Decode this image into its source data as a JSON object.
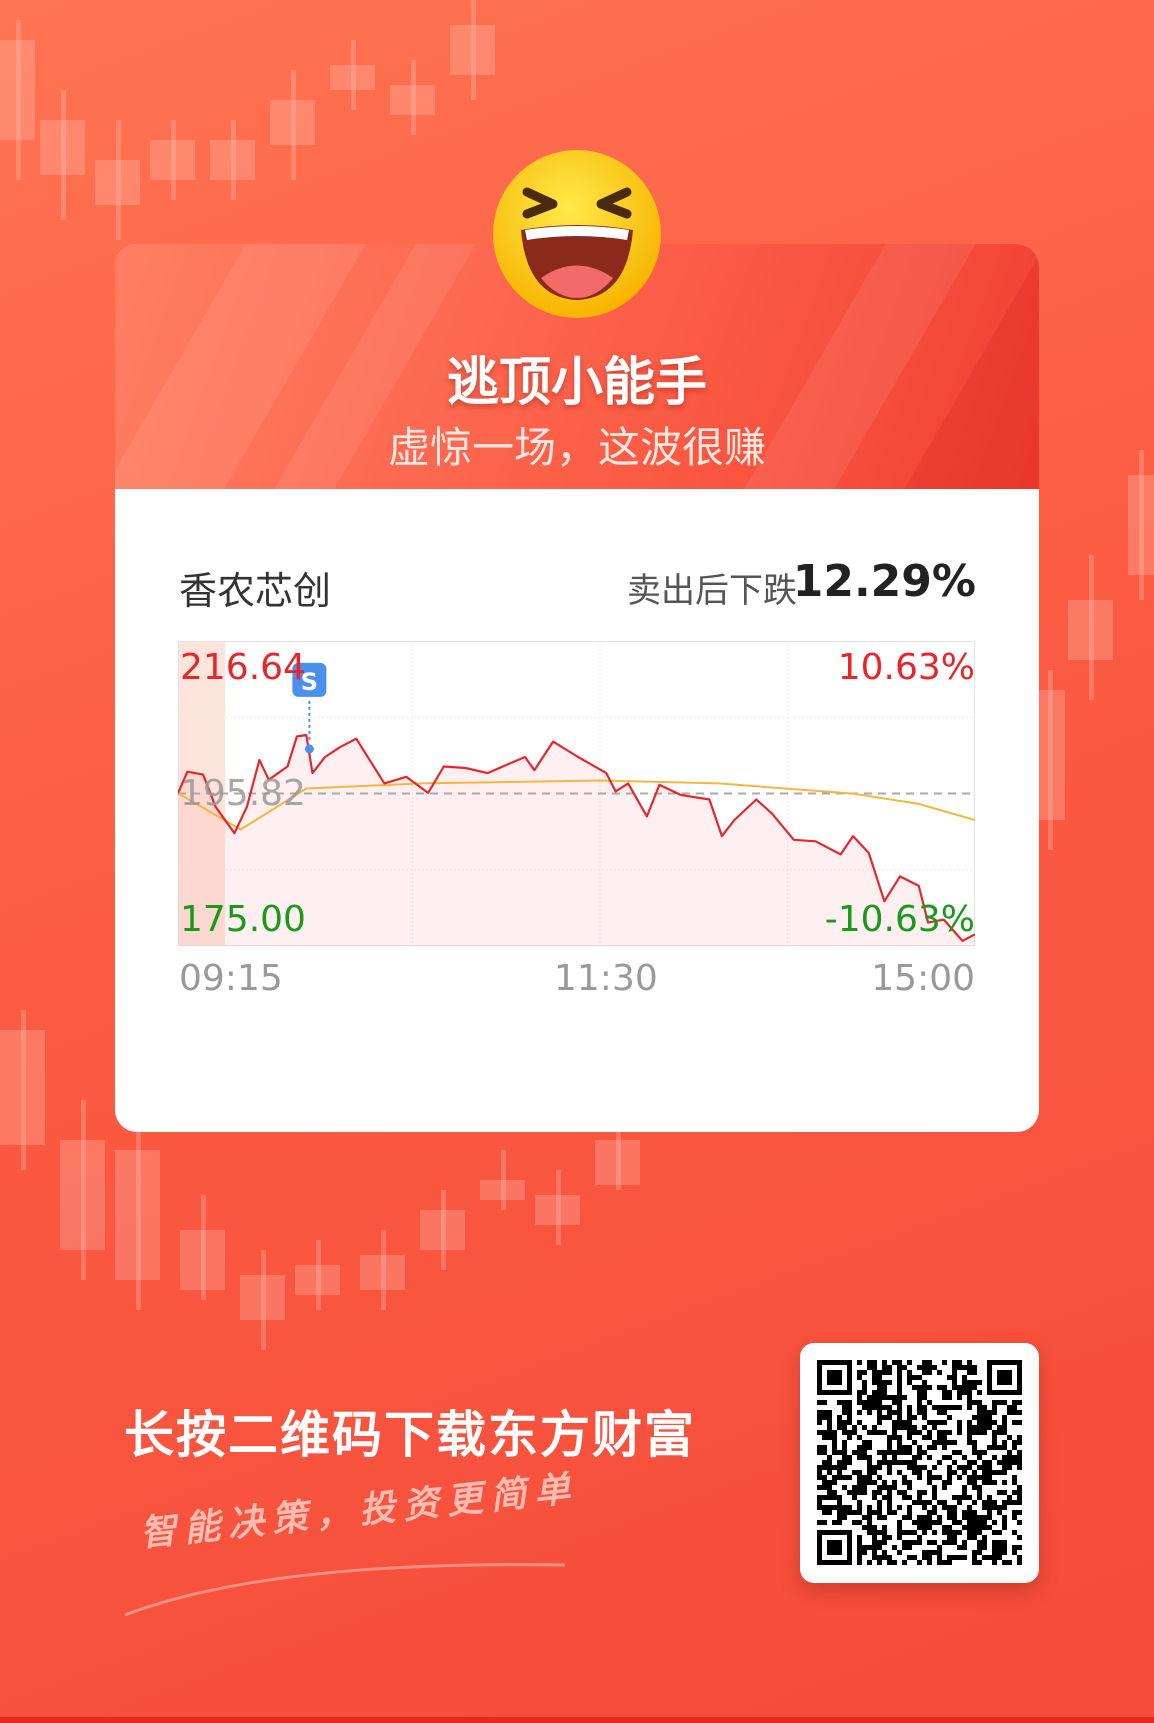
{
  "header": {
    "title": "逃顶小能手",
    "subtitle": "虚惊一场，这波很赚",
    "emoji_icon": "laughing-face-icon"
  },
  "stock": {
    "name": "香农芯创",
    "drop_label": "卖出后下跌",
    "drop_value": "12.29%"
  },
  "chart_data": {
    "type": "line",
    "y_axis_left": {
      "max_label": "216.64",
      "mid_label": "195.82",
      "min_label": "175.00"
    },
    "y_axis_right": {
      "max_label": "10.63%",
      "min_label": "-10.63%"
    },
    "ylim": [
      175.0,
      216.64
    ],
    "preclose": 195.82,
    "x_tick_labels": [
      "09:15",
      "11:30",
      "15:00"
    ],
    "grid": true,
    "colors": {
      "price": "#e8262a",
      "average": "#f5b53f",
      "up": "#e8262a",
      "down": "#1a9a1a",
      "sell_marker": "#4a90f0"
    },
    "sell_marker": {
      "label": "S",
      "time": "09:57",
      "price": 203.0
    },
    "series": [
      {
        "key": "price",
        "points": [
          [
            "09:15",
            195.86
          ],
          [
            "09:18",
            198.8
          ],
          [
            "09:23",
            198.4
          ],
          [
            "09:27",
            194.0
          ],
          [
            "09:33",
            190.4
          ],
          [
            "09:37",
            194.0
          ],
          [
            "09:41",
            200.4
          ],
          [
            "09:44",
            197.7
          ],
          [
            "09:50",
            199.5
          ],
          [
            "09:53",
            203.6
          ],
          [
            "09:56",
            203.8
          ],
          [
            "09:58",
            198.6
          ],
          [
            "10:02",
            200.8
          ],
          [
            "10:07",
            202.2
          ],
          [
            "10:12",
            203.3
          ],
          [
            "10:17",
            199.9
          ],
          [
            "10:21",
            197.2
          ],
          [
            "10:28",
            198.1
          ],
          [
            "10:35",
            195.9
          ],
          [
            "10:40",
            199.5
          ],
          [
            "10:47",
            199.3
          ],
          [
            "10:54",
            198.6
          ],
          [
            "11:01",
            199.9
          ],
          [
            "11:06",
            200.8
          ],
          [
            "11:09",
            199.0
          ],
          [
            "11:15",
            202.9
          ],
          [
            "11:23",
            200.8
          ],
          [
            "13:02",
            198.6
          ],
          [
            "13:05",
            196.1
          ],
          [
            "13:09",
            197.2
          ],
          [
            "13:15",
            192.7
          ],
          [
            "13:19",
            197.0
          ],
          [
            "13:26",
            195.6
          ],
          [
            "13:35",
            195.0
          ],
          [
            "13:39",
            190.0
          ],
          [
            "13:43",
            192.2
          ],
          [
            "13:50",
            195.0
          ],
          [
            "13:55",
            193.1
          ],
          [
            "14:02",
            189.5
          ],
          [
            "14:09",
            189.3
          ],
          [
            "14:17",
            187.5
          ],
          [
            "14:21",
            190.0
          ],
          [
            "14:26",
            187.7
          ],
          [
            "14:31",
            181.1
          ],
          [
            "14:36",
            184.5
          ],
          [
            "14:42",
            183.2
          ],
          [
            "14:45",
            178.2
          ],
          [
            "14:50",
            178.6
          ],
          [
            "14:56",
            175.7
          ],
          [
            "15:00",
            176.6
          ]
        ]
      },
      {
        "key": "average",
        "points": [
          [
            "09:15",
            195.86
          ],
          [
            "09:35",
            190.9
          ],
          [
            "09:56",
            196.5
          ],
          [
            "10:33",
            197.2
          ],
          [
            "11:30",
            197.6
          ],
          [
            "13:38",
            197.2
          ],
          [
            "14:21",
            195.8
          ],
          [
            "14:42",
            194.4
          ],
          [
            "15:00",
            192.2
          ]
        ]
      }
    ]
  },
  "footer": {
    "cta": "长按二维码下载东方财富",
    "slogan": "智能决策，投资更简单",
    "qr_icon": "qr-code-icon"
  }
}
